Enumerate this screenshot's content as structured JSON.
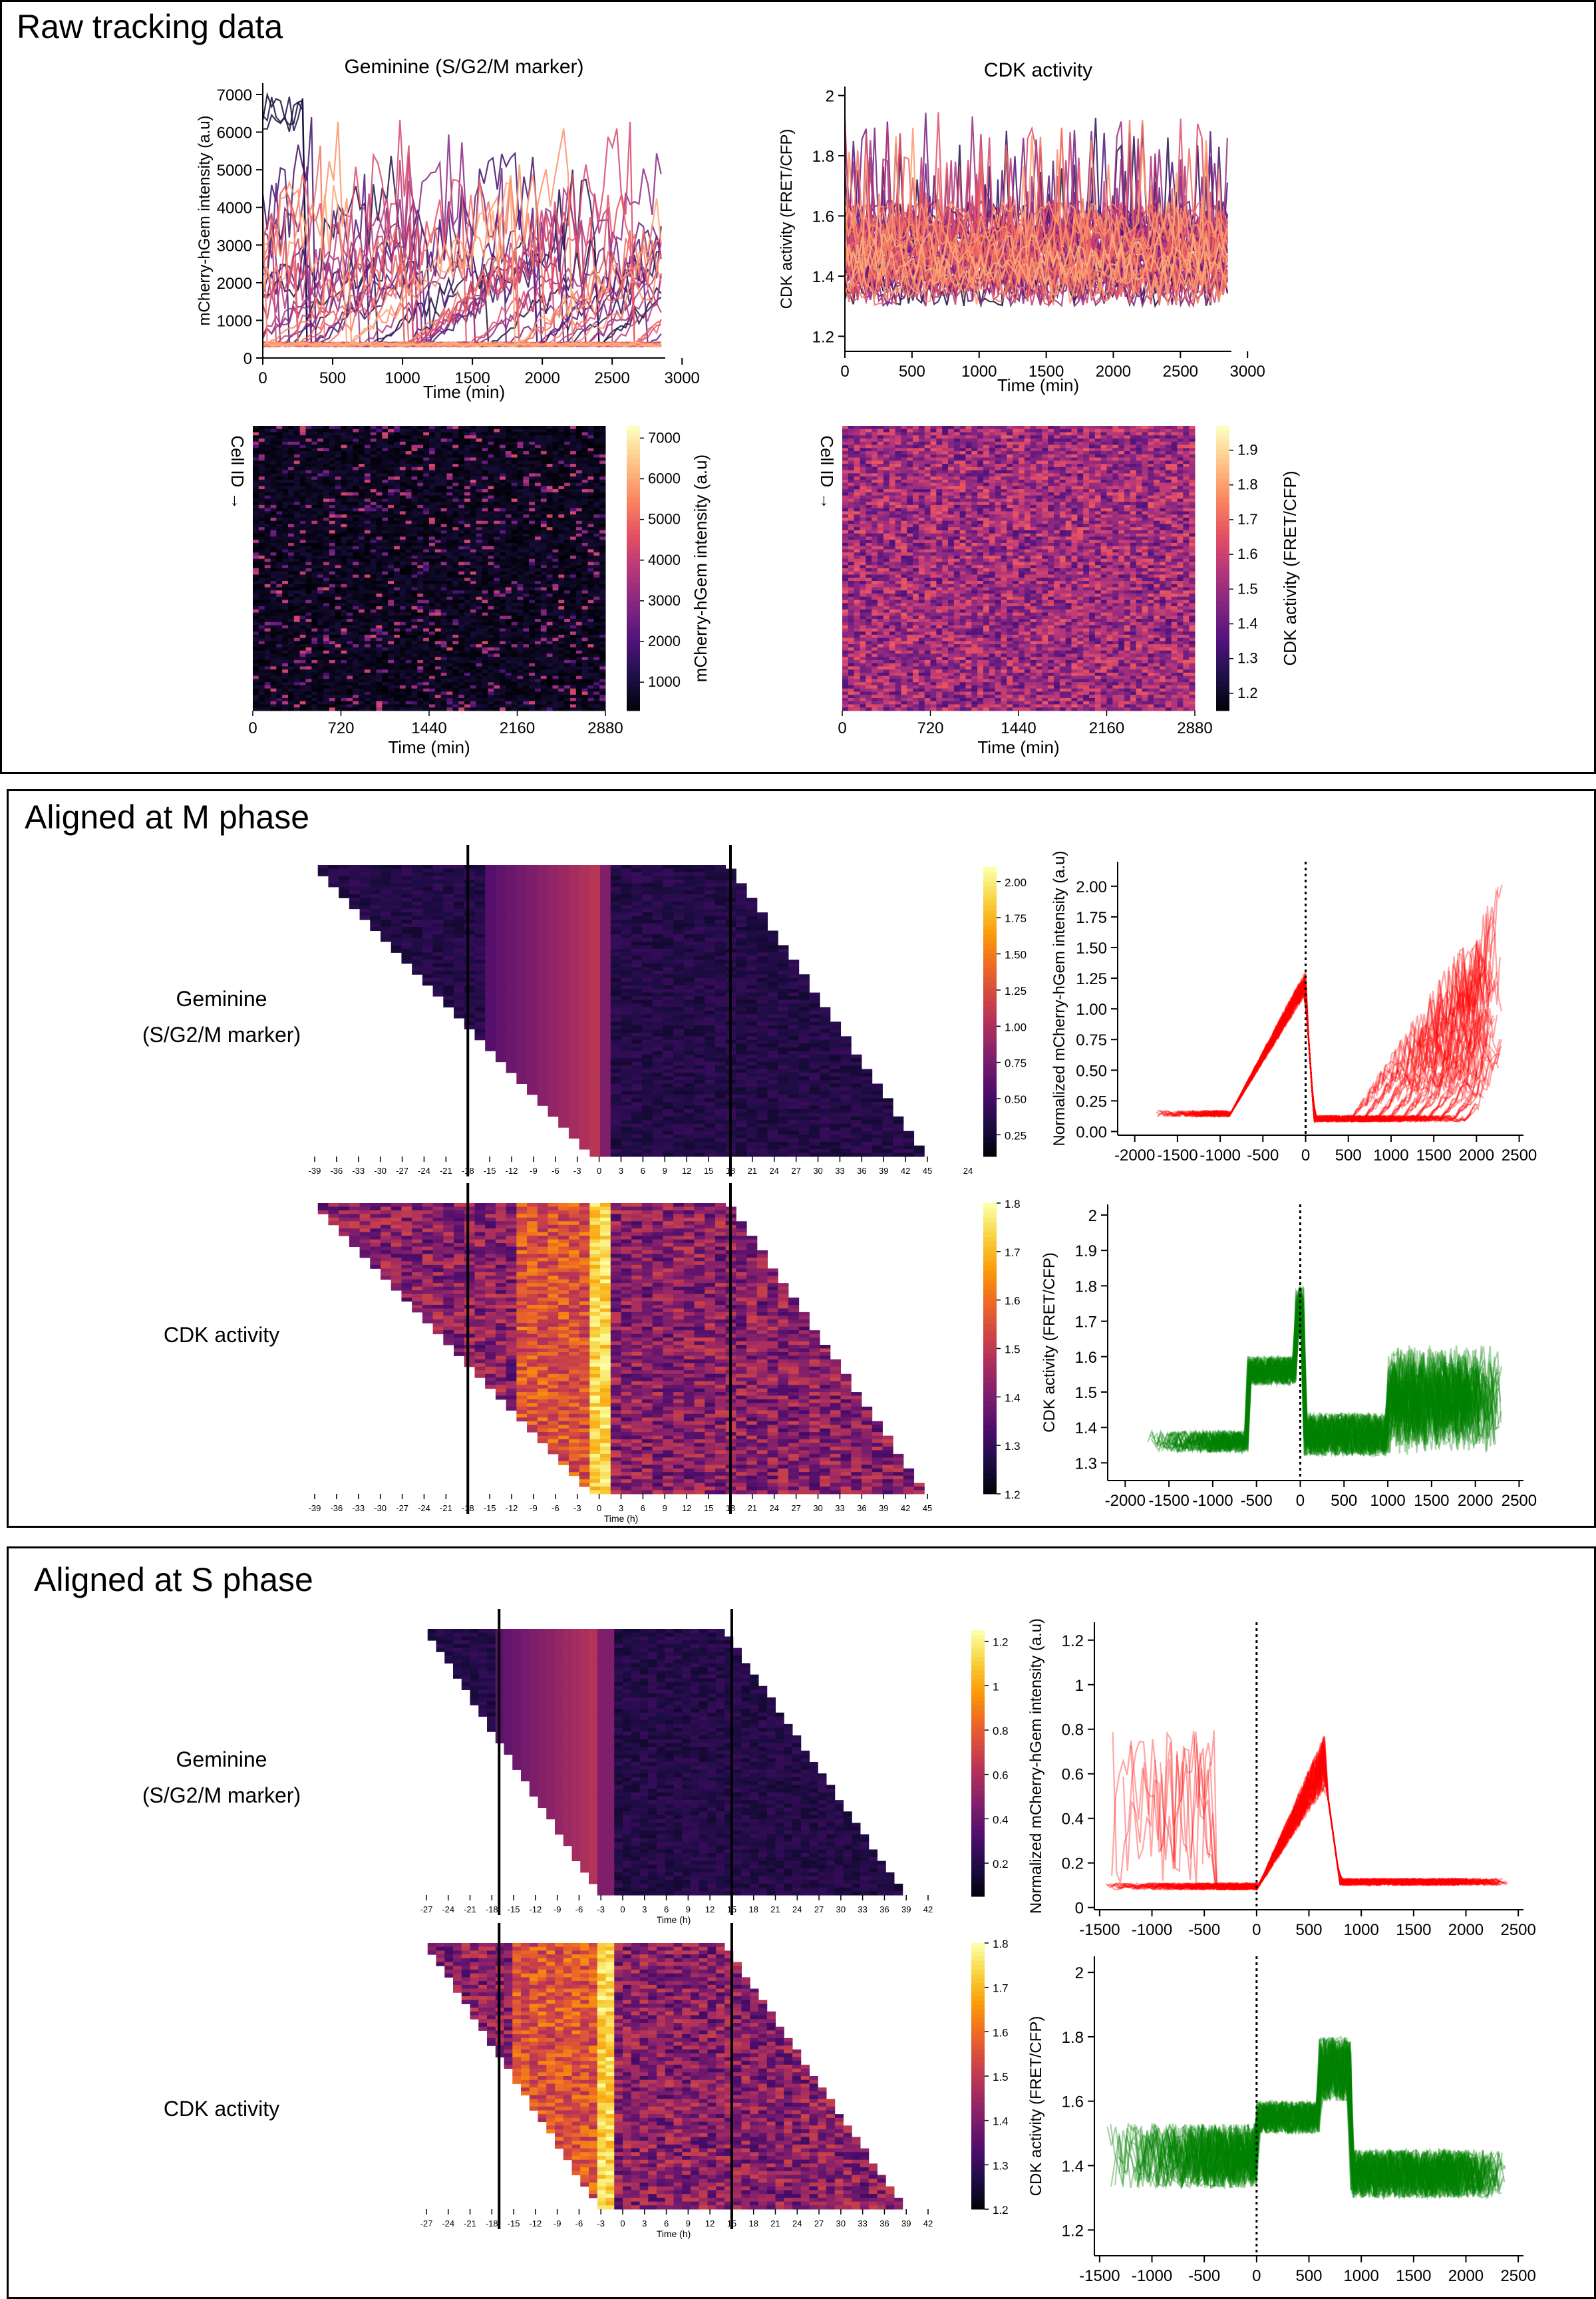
{
  "panels": {
    "raw": {
      "title": "Raw tracking data"
    },
    "m": {
      "title": "Aligned at M phase"
    },
    "s": {
      "title": "Aligned at S phase"
    }
  },
  "labels": {
    "gem_row_1": "Geminine",
    "gem_row_2": "(S/G2/M marker)",
    "cdk_row": "CDK activity"
  },
  "colormaps": {
    "magma": [
      "#000004",
      "#1c1044",
      "#4f127b",
      "#812581",
      "#b5367a",
      "#e55064",
      "#fb8761",
      "#fec287",
      "#fcfdbf"
    ],
    "inferno": [
      "#000004",
      "#1b0c41",
      "#4a0c6b",
      "#781c6d",
      "#a52c60",
      "#cf4446",
      "#ed6925",
      "#fb9b06",
      "#f7d13d",
      "#fcffa4"
    ],
    "red": "#ff0000",
    "green": "#008000"
  },
  "chart_data": [
    {
      "id": "raw-gem-lines",
      "type": "line",
      "title": "Geminine (S/G2/M marker)",
      "xlabel": "Time (min)",
      "ylabel": "mCherry-hGem intensity (a.u)",
      "xlim": [
        0,
        2880
      ],
      "ylim": [
        0,
        7300
      ],
      "xticks": [
        0,
        500,
        1000,
        1500,
        2000,
        2500,
        3000
      ],
      "yticks": [
        0,
        1000,
        2000,
        3000,
        4000,
        5000,
        6000,
        7000
      ],
      "colormap": "magma",
      "grid": false,
      "n_series": 60
    },
    {
      "id": "raw-cdk-lines",
      "type": "line",
      "title": "CDK activity",
      "xlabel": "Time (min)",
      "ylabel": "CDK activity (FRET/CFP)",
      "xlim": [
        0,
        2880
      ],
      "ylim": [
        1.15,
        2.03
      ],
      "xticks": [
        0,
        500,
        1000,
        1500,
        2000,
        2500,
        3000
      ],
      "yticks": [
        1.2,
        1.4,
        1.6,
        1.8,
        2.0
      ],
      "colormap": "magma",
      "grid": false,
      "n_series": 60
    },
    {
      "id": "raw-gem-heat",
      "type": "heatmap",
      "xlabel": "Time (min)",
      "ylabel": "Cell ID →",
      "colorbar_label": "mCherry-hGem intensity (a.u)",
      "xlim": [
        0,
        2880
      ],
      "xticks": [
        0,
        720,
        1440,
        2160,
        2880
      ],
      "clim": [
        300,
        7300
      ],
      "cticks": [
        1000,
        2000,
        3000,
        4000,
        5000,
        6000,
        7000
      ],
      "colormap": "magma",
      "n_rows": 90
    },
    {
      "id": "raw-cdk-heat",
      "type": "heatmap",
      "xlabel": "Time (min)",
      "ylabel": "Cell ID →",
      "colorbar_label": "CDK activity (FRET/CFP)",
      "xlim": [
        0,
        2880
      ],
      "xticks": [
        0,
        720,
        1440,
        2160,
        2880
      ],
      "clim": [
        1.15,
        1.97
      ],
      "cticks": [
        1.2,
        1.3,
        1.4,
        1.5,
        1.6,
        1.7,
        1.8,
        1.9
      ],
      "colormap": "magma",
      "n_rows": 90
    },
    {
      "id": "m-gem-heat",
      "type": "heatmap",
      "xlabel": "",
      "xticks": [
        -39,
        -36,
        -33,
        -30,
        -27,
        -24,
        -21,
        -18,
        -15,
        -12,
        -9,
        -6,
        -3,
        0,
        3,
        6,
        9,
        12,
        15,
        18,
        21,
        24,
        27,
        30,
        33,
        36,
        39,
        42,
        45
      ],
      "extra_tick": "24",
      "xlim": [
        -40,
        46
      ],
      "align": 0,
      "vlines": [
        -18,
        18
      ],
      "clim": [
        0.1,
        2.1
      ],
      "cticks": [
        0.25,
        0.5,
        0.75,
        1.0,
        1.25,
        1.5,
        1.75,
        2.0
      ],
      "ctick_labels": [
        "0.25",
        "0.50",
        "0.75",
        "1.00",
        "1.25",
        "1.50",
        "1.75",
        "2.00"
      ],
      "colormap": "inferno",
      "n_rows": 80
    },
    {
      "id": "m-cdk-heat",
      "type": "heatmap",
      "xlabel": "Time (h)",
      "xticks": [
        -39,
        -36,
        -33,
        -30,
        -27,
        -24,
        -21,
        -18,
        -15,
        -12,
        -9,
        -6,
        -3,
        0,
        3,
        6,
        9,
        12,
        15,
        18,
        21,
        24,
        27,
        30,
        33,
        36,
        39,
        42,
        45
      ],
      "xlim": [
        -40,
        46
      ],
      "align": 0,
      "vlines": [
        -18,
        18
      ],
      "clim": [
        1.2,
        1.8
      ],
      "cticks": [
        1.2,
        1.3,
        1.4,
        1.5,
        1.6,
        1.7,
        1.8
      ],
      "colormap": "inferno",
      "n_rows": 80
    },
    {
      "id": "m-gem-lines",
      "type": "line",
      "ylabel": "Normalized mCherry-hGem intensity (a.u)",
      "xlim": [
        -2200,
        2550
      ],
      "ylim": [
        -0.03,
        2.2
      ],
      "xticks": [
        -2000,
        -1500,
        -1000,
        -500,
        0,
        500,
        1000,
        1500,
        2000,
        2500
      ],
      "yticks": [
        0.0,
        0.25,
        0.5,
        0.75,
        1.0,
        1.25,
        1.5,
        1.75,
        2.0
      ],
      "ytick_labels": [
        "0.00",
        "0.25",
        "0.50",
        "0.75",
        "1.00",
        "1.25",
        "1.50",
        "1.75",
        "2.00"
      ],
      "vline": 0,
      "color": "red",
      "n_series": 60
    },
    {
      "id": "m-cdk-lines",
      "type": "line",
      "ylabel": "CDK activity (FRET/CFP)",
      "xlim": [
        -2200,
        2550
      ],
      "ylim": [
        1.25,
        2.03
      ],
      "xticks": [
        -2000,
        -1500,
        -1000,
        -500,
        0,
        500,
        1000,
        1500,
        2000,
        2500
      ],
      "yticks": [
        1.3,
        1.4,
        1.5,
        1.6,
        1.7,
        1.8,
        1.9,
        2.0
      ],
      "vline": 0,
      "color": "green",
      "n_series": 60
    },
    {
      "id": "s-gem-heat",
      "type": "heatmap",
      "xlabel": "Time (h)",
      "xticks": [
        -27,
        -24,
        -21,
        -18,
        -15,
        -12,
        -9,
        -6,
        -3,
        0,
        3,
        6,
        9,
        12,
        15,
        18,
        21,
        24,
        27,
        30,
        33,
        36,
        39,
        42
      ],
      "xlim": [
        -28,
        42
      ],
      "align": -3,
      "vlines": [
        -17,
        15
      ],
      "clim": [
        0.05,
        1.25
      ],
      "cticks": [
        0.2,
        0.4,
        0.6,
        0.8,
        1.0,
        1.2
      ],
      "colormap": "inferno",
      "n_rows": 70
    },
    {
      "id": "s-cdk-heat",
      "type": "heatmap",
      "xlabel": "Time (h)",
      "xticks": [
        -27,
        -24,
        -21,
        -18,
        -15,
        -12,
        -9,
        -6,
        -3,
        0,
        3,
        6,
        9,
        12,
        15,
        18,
        21,
        24,
        27,
        30,
        33,
        36,
        39,
        42
      ],
      "xlim": [
        -28,
        42
      ],
      "align": -3,
      "vlines": [
        -17,
        15
      ],
      "clim": [
        1.2,
        1.8
      ],
      "cticks": [
        1.2,
        1.3,
        1.4,
        1.5,
        1.6,
        1.7,
        1.8
      ],
      "colormap": "inferno",
      "n_rows": 70
    },
    {
      "id": "s-gem-lines",
      "type": "line",
      "ylabel": "Normalized mCherry-hGem intensity (a.u)",
      "xlim": [
        -1550,
        2550
      ],
      "ylim": [
        -0.01,
        1.28
      ],
      "xticks": [
        -1500,
        -1000,
        -500,
        0,
        500,
        1000,
        1500,
        2000,
        2500
      ],
      "yticks": [
        0.0,
        0.2,
        0.4,
        0.6,
        0.8,
        1.0,
        1.2
      ],
      "vline": 0,
      "color": "red",
      "n_series": 60
    },
    {
      "id": "s-cdk-lines",
      "type": "line",
      "ylabel": "CDK activity (FRET/CFP)",
      "xlim": [
        -1550,
        2550
      ],
      "ylim": [
        1.12,
        2.05
      ],
      "xticks": [
        -1500,
        -1000,
        -500,
        0,
        500,
        1000,
        1500,
        2000,
        2500
      ],
      "yticks": [
        1.2,
        1.4,
        1.6,
        1.8,
        2.0
      ],
      "vline": 0,
      "color": "green",
      "n_series": 60
    }
  ]
}
